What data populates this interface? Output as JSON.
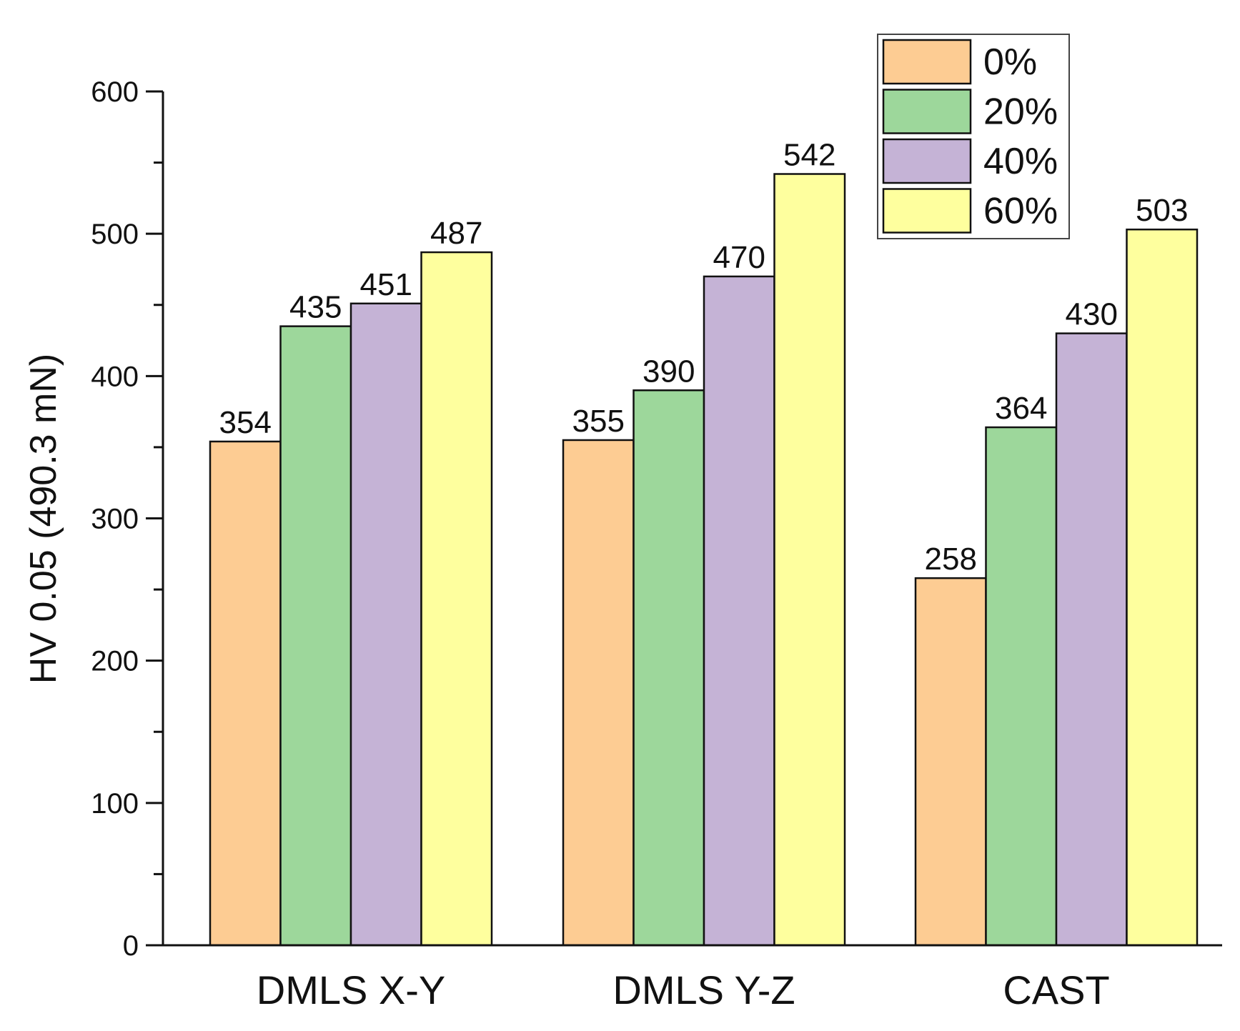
{
  "chart_data": {
    "type": "bar",
    "title": "",
    "xlabel": "",
    "ylabel": "HV 0.05 (490.3 mN)",
    "ylim": [
      0,
      600
    ],
    "yticks": [
      0,
      100,
      200,
      300,
      400,
      500,
      600
    ],
    "grid": false,
    "legend_position": "top-right",
    "categories": [
      "DMLS X-Y",
      "DMLS Y-Z",
      "CAST"
    ],
    "series": [
      {
        "name": "0%",
        "color": "#fdcc93",
        "values": [
          354,
          355,
          258
        ]
      },
      {
        "name": "20%",
        "color": "#9dd79b",
        "values": [
          435,
          390,
          364
        ]
      },
      {
        "name": "40%",
        "color": "#c5b3d6",
        "values": [
          451,
          470,
          430
        ]
      },
      {
        "name": "60%",
        "color": "#feff9e",
        "values": [
          487,
          542,
          503
        ]
      }
    ]
  }
}
